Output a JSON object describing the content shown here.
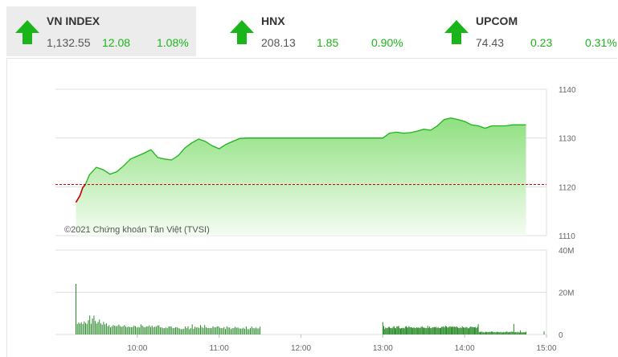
{
  "tickers": [
    {
      "name": "VN INDEX",
      "price": "1,132.55",
      "change": "12.08",
      "percent": "1.08%",
      "direction": "up-arrow-icon",
      "active": true
    },
    {
      "name": "HNX",
      "price": "208.13",
      "change": "1.85",
      "percent": "0.90%",
      "direction": "up-arrow-icon",
      "active": false
    },
    {
      "name": "UPCOM",
      "price": "74.43",
      "change": "0.23",
      "percent": "0.31%",
      "direction": "up-arrow-icon",
      "active": false
    }
  ],
  "colors": {
    "up": "#1ab51a",
    "reference": "#cc0000",
    "area_top": "#8fe07f",
    "area_bottom": "#f4fcf2",
    "volume": "#2a8a2a",
    "grid": "#dddddd"
  },
  "chart_data": {
    "type": "area",
    "copyright": "©2021 Chứng khoán Tân Việt (TVSI)",
    "reference_line": 1120.47,
    "x_ticks": [
      "10:00",
      "11:00",
      "12:00",
      "13:00",
      "14:00",
      "15:00"
    ],
    "price_axis": {
      "ylim": [
        1110,
        1140
      ],
      "ticks": [
        "1110",
        "1120",
        "1130",
        "1140"
      ]
    },
    "volume_axis": {
      "ylim": [
        0,
        40
      ],
      "ticks": [
        "0",
        "20M",
        "40M"
      ]
    },
    "price_series": {
      "x": [
        "09:15",
        "09:18",
        "09:20",
        "09:22",
        "09:25",
        "09:30",
        "09:35",
        "09:40",
        "09:45",
        "09:50",
        "09:55",
        "10:00",
        "10:05",
        "10:10",
        "10:15",
        "10:20",
        "10:25",
        "10:30",
        "10:35",
        "10:40",
        "10:45",
        "10:50",
        "10:55",
        "11:00",
        "11:05",
        "11:10",
        "11:15",
        "11:20",
        "11:25",
        "11:30",
        "13:00",
        "13:05",
        "13:10",
        "13:15",
        "13:20",
        "13:25",
        "13:30",
        "13:35",
        "13:40",
        "13:45",
        "13:50",
        "13:55",
        "14:00",
        "14:05",
        "14:10",
        "14:15",
        "14:20",
        "14:25",
        "14:30",
        "14:35",
        "14:40",
        "14:45"
      ],
      "y": [
        1116.8,
        1118.2,
        1119.8,
        1120.5,
        1122.5,
        1124.0,
        1123.5,
        1122.6,
        1123.1,
        1124.3,
        1125.7,
        1126.3,
        1126.9,
        1127.6,
        1126.0,
        1125.7,
        1125.5,
        1126.4,
        1128.0,
        1129.0,
        1129.8,
        1129.3,
        1128.4,
        1127.8,
        1128.7,
        1129.3,
        1129.9,
        1130.0,
        1130.0,
        1130.0,
        1130.0,
        1131.0,
        1131.2,
        1131.0,
        1131.1,
        1131.4,
        1131.8,
        1131.6,
        1132.5,
        1133.8,
        1134.1,
        1133.8,
        1133.4,
        1132.7,
        1132.5,
        1132.0,
        1132.5,
        1132.5,
        1132.5,
        1132.7,
        1132.7,
        1132.7
      ]
    },
    "volume_series": {
      "morning_start": "09:15",
      "morning_end": "11:30",
      "afternoon_start": "13:00",
      "afternoon_end": "14:45",
      "morning": [
        24.0,
        5.0,
        5.6,
        5.2,
        5.8,
        4.9,
        6.2,
        5.4,
        5.0,
        6.8,
        9.0,
        5.1,
        7.6,
        8.9,
        6.4,
        5.2,
        5.9,
        7.1,
        5.3,
        4.6,
        6.0,
        4.8,
        5.3,
        3.9,
        4.4,
        3.4,
        3.9,
        4.5,
        4.2,
        3.9,
        4.1,
        4.7,
        4.0,
        3.6,
        3.9,
        4.4,
        3.7,
        3.4,
        3.8,
        3.5,
        3.5,
        3.6,
        4.2,
        3.9,
        3.3,
        3.6,
        3.3,
        4.8,
        4.2,
        3.6,
        3.4,
        3.8,
        3.8,
        4.3,
        3.6,
        4.2,
        3.4,
        3.7,
        3.7,
        4.3,
        4.3,
        3.4,
        3.4,
        3.0,
        3.0,
        3.3,
        3.0,
        3.8,
        3.8,
        3.7,
        3.0,
        3.1,
        3.4,
        3.5,
        3.1,
        2.8,
        2.5,
        2.6,
        2.7,
        3.8,
        3.0,
        3.9,
        2.5,
        3.0,
        4.8,
        2.7,
        3.7,
        3.3,
        3.4,
        3.0,
        4.4,
        3.5,
        3.1,
        4.5,
        3.4,
        3.1,
        3.1,
        3.1,
        3.0,
        3.9,
        3.4,
        3.4,
        3.8,
        3.8,
        3.2,
        3.0,
        3.0,
        3.5,
        2.6,
        3.9,
        3.4,
        3.3,
        2.5,
        3.0,
        3.1,
        3.7,
        3.2,
        3.3,
        2.9,
        2.8,
        2.8,
        3.2,
        2.7,
        3.8,
        2.5,
        2.5,
        3.0,
        3.8,
        3.1,
        2.9,
        3.3,
        2.9,
        2.9,
        3.7
      ],
      "afternoon": [
        5.9,
        4.0,
        2.6,
        3.3,
        3.0,
        3.1,
        3.6,
        3.6,
        3.1,
        3.1,
        2.9,
        3.6,
        4.0,
        3.1,
        2.9,
        3.9,
        3.7,
        4.1,
        3.0,
        2.8,
        3.1,
        3.1,
        3.2,
        2.9,
        3.7,
        4.0,
        3.3,
        3.3,
        3.9,
        3.4,
        3.4,
        3.4,
        3.1,
        3.3,
        3.2,
        3.0,
        3.4,
        3.2,
        3.3,
        3.1,
        3.2,
        3.6,
        3.9,
        3.3,
        3.2,
        3.2,
        3.0,
        3.0,
        4.1,
        3.2,
        3.8,
        3.0,
        3.0,
        3.4,
        3.4,
        3.6,
        3.4,
        3.7,
        3.1,
        3.5,
        3.1,
        3.0,
        3.2,
        3.7,
        3.6,
        3.9,
        3.3,
        4.1,
        3.8,
        3.3,
        3.3,
        3.7,
        3.9,
        3.5,
        3.8,
        3.6,
        3.8,
        3.6,
        3.6,
        3.8,
        3.3,
        3.0,
        3.0,
        3.3,
        3.1,
        3.9,
        3.4,
        3.3,
        3.2,
        3.6,
        3.4,
        2.9,
        3.0,
        3.5,
        3.8,
        3.5,
        3.6,
        3.4,
        3.4,
        3.6,
        3.0,
        3.6,
        4.9,
        1.2,
        1.3,
        1.1,
        1.5,
        1.0,
        1.1,
        0.9,
        1.3,
        1.2,
        1.1,
        1.1,
        1.3,
        1.1,
        1.4,
        1.4,
        1.2,
        1.1,
        1.1,
        1.0,
        1.3,
        1.2,
        1.2,
        1.0,
        1.3,
        1.0,
        1.0,
        1.2,
        1.0,
        1.1,
        1.5,
        1.3,
        1.0,
        1.2,
        1.2,
        1.3,
        1.4,
        1.2,
        5.0,
        1.0,
        1.2,
        1.0,
        1.3,
        1.0,
        1.0,
        2.0,
        1.0,
        1.0,
        1.0,
        1.1,
        1.0,
        1.3
      ],
      "atc": 1.5
    }
  }
}
